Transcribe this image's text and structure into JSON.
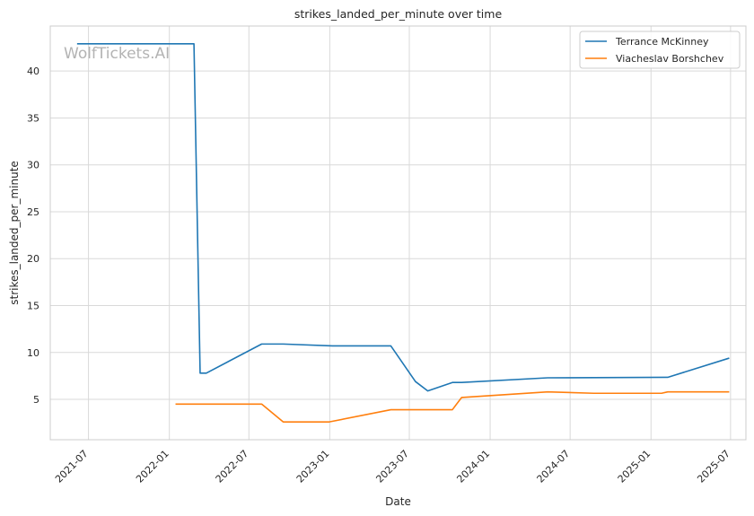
{
  "chart_data": {
    "type": "line",
    "title": "strikes_landed_per_minute over time",
    "xlabel": "Date",
    "ylabel": "strikes_landed_per_minute",
    "watermark": "WolfTickets.AI",
    "x_ticks": [
      "2021-07",
      "2022-01",
      "2022-07",
      "2023-01",
      "2023-07",
      "2024-01",
      "2024-07",
      "2025-01",
      "2025-07"
    ],
    "y_ticks": [
      5,
      10,
      15,
      20,
      25,
      30,
      35,
      40
    ],
    "xlim": [
      "2021-04-05",
      "2025-08-05"
    ],
    "ylim": [
      0.7,
      44.8
    ],
    "grid": true,
    "legend_position": "top-right",
    "series": [
      {
        "name": "Terrance McKinney",
        "color": "#1f77b4",
        "points": [
          {
            "x": "2021-06-05",
            "y": 42.9
          },
          {
            "x": "2022-02-26",
            "y": 42.9
          },
          {
            "x": "2022-03-12",
            "y": 7.8
          },
          {
            "x": "2022-03-26",
            "y": 7.8
          },
          {
            "x": "2022-07-30",
            "y": 10.9
          },
          {
            "x": "2022-09-17",
            "y": 10.9
          },
          {
            "x": "2023-01-07",
            "y": 10.7
          },
          {
            "x": "2023-05-20",
            "y": 10.7
          },
          {
            "x": "2023-07-15",
            "y": 6.9
          },
          {
            "x": "2023-08-12",
            "y": 5.9
          },
          {
            "x": "2023-10-07",
            "y": 6.8
          },
          {
            "x": "2023-10-28",
            "y": 6.8
          },
          {
            "x": "2024-05-11",
            "y": 7.3
          },
          {
            "x": "2025-02-08",
            "y": 7.35
          },
          {
            "x": "2025-06-28",
            "y": 9.4
          }
        ]
      },
      {
        "name": "Viacheslav Borshchev",
        "color": "#ff7f0e",
        "points": [
          {
            "x": "2022-01-15",
            "y": 4.5
          },
          {
            "x": "2022-07-30",
            "y": 4.5
          },
          {
            "x": "2022-09-17",
            "y": 2.6
          },
          {
            "x": "2022-12-31",
            "y": 2.6
          },
          {
            "x": "2023-05-20",
            "y": 3.9
          },
          {
            "x": "2023-10-07",
            "y": 3.9
          },
          {
            "x": "2023-10-28",
            "y": 5.2
          },
          {
            "x": "2024-05-11",
            "y": 5.8
          },
          {
            "x": "2024-08-24",
            "y": 5.65
          },
          {
            "x": "2025-01-25",
            "y": 5.65
          },
          {
            "x": "2025-02-08",
            "y": 5.8
          },
          {
            "x": "2025-06-28",
            "y": 5.8
          }
        ]
      }
    ]
  }
}
